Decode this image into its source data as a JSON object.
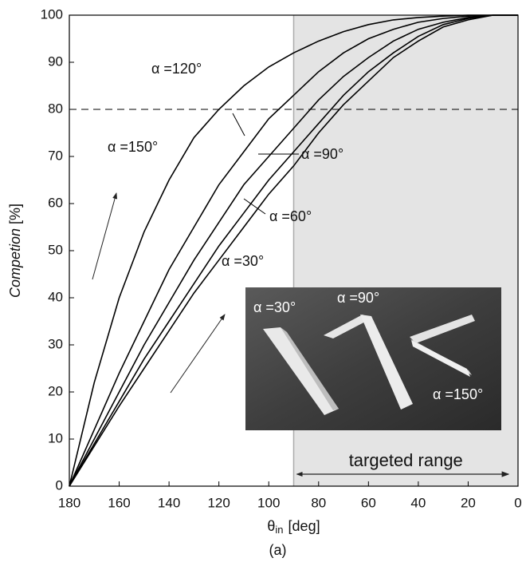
{
  "chart_data": {
    "type": "line",
    "x_label": {
      "symbol": "θ",
      "subscript": "in",
      "unit": "[deg]"
    },
    "y_label": {
      "text": "Competion",
      "unit": "[%]"
    },
    "caption": "(a)",
    "xlim": [
      180,
      0
    ],
    "ylim": [
      0,
      100
    ],
    "xticks": [
      180,
      160,
      140,
      120,
      100,
      80,
      60,
      40,
      20,
      0
    ],
    "yticks": [
      0,
      10,
      20,
      30,
      40,
      50,
      60,
      70,
      80,
      90,
      100
    ],
    "x": [
      180,
      170,
      160,
      150,
      140,
      130,
      120,
      110,
      100,
      90,
      80,
      70,
      60,
      50,
      40,
      30,
      20,
      10,
      0
    ],
    "series": [
      {
        "name": "α =30°",
        "color": "#000000",
        "values": [
          0,
          8.5,
          17,
          25,
          33,
          41,
          48,
          55,
          62,
          68,
          75,
          81,
          86,
          91,
          94.5,
          97.5,
          99,
          100,
          100
        ]
      },
      {
        "name": "α =60°",
        "color": "#000000",
        "values": [
          0,
          9,
          18,
          27,
          35,
          43,
          51,
          58,
          65,
          71,
          77,
          83,
          88,
          92,
          95.5,
          98,
          99.3,
          100,
          100
        ]
      },
      {
        "name": "α =90°",
        "color": "#000000",
        "values": [
          0,
          10,
          20,
          30,
          39,
          48,
          56,
          64,
          70,
          76,
          82,
          87,
          91,
          94.5,
          97,
          98.5,
          99.5,
          100,
          100
        ]
      },
      {
        "name": "α =120°",
        "color": "#000000",
        "values": [
          0,
          12,
          24,
          35,
          46,
          55,
          64,
          71,
          78,
          83,
          88,
          92,
          95,
          97,
          98.5,
          99.3,
          99.8,
          100,
          100
        ]
      },
      {
        "name": "α =150°",
        "color": "#000000",
        "values": [
          0,
          22,
          40,
          54,
          65,
          74,
          80,
          85,
          89,
          92,
          94.5,
          96.5,
          98,
          99,
          99.5,
          99.8,
          100,
          100,
          100
        ]
      }
    ],
    "threshold": 80,
    "shaded_range": [
      90,
      0
    ],
    "range_label": "targeted range",
    "inset_labels": [
      "α =30°",
      "α =90°",
      "α =150°"
    ]
  }
}
